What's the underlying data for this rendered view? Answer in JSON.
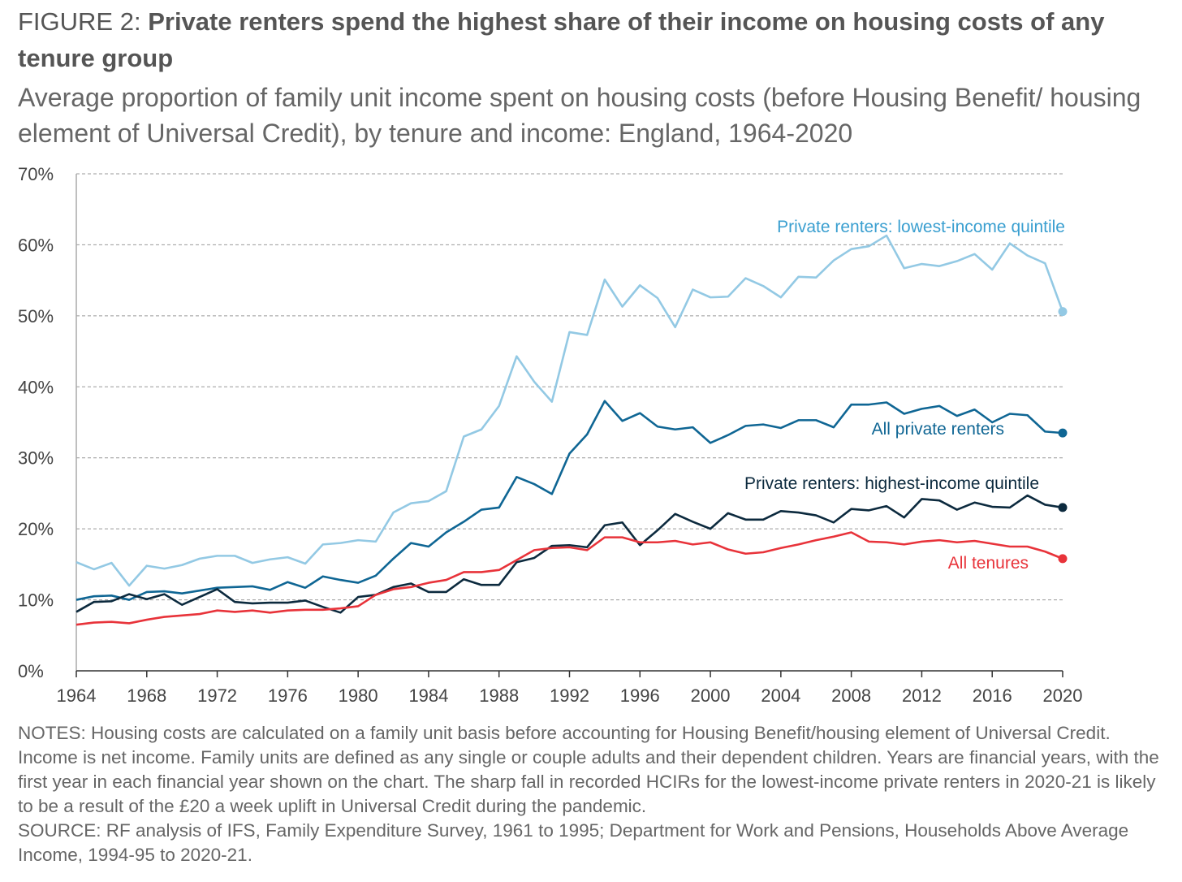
{
  "title": {
    "prefix": "FIGURE 2: ",
    "bold": "Private renters spend the highest share of their income on housing costs of any tenure group"
  },
  "subtitle": "Average proportion of family unit income spent on housing costs (before Housing Benefit/ housing element of Universal Credit), by tenure and income: England, 1964-2020",
  "notes": [
    "NOTES: Housing costs are calculated on a family unit basis before accounting for Housing Benefit/housing element of Universal Credit. Income is net income. Family units are defined as any single or couple adults and their dependent children. Years are financial years, with the first year in each financial year shown on the chart. The sharp fall in recorded HCIRs for the lowest-income private renters in 2020-21 is likely to be a result of the £20 a week uplift in Universal Credit during the pandemic.",
    "SOURCE: RF analysis of IFS, Family Expenditure Survey, 1961 to 1995; Department for Work and Pensions, Households Above Average Income, 1994-95 to 2020-21."
  ],
  "chart_data": {
    "type": "line",
    "xlim": [
      1964,
      2020
    ],
    "ylim": [
      0,
      70
    ],
    "grid": true,
    "x_ticks": [
      "1964",
      "1968",
      "1972",
      "1976",
      "1980",
      "1984",
      "1988",
      "1992",
      "1996",
      "2000",
      "2004",
      "2008",
      "2012",
      "2016",
      "2020"
    ],
    "y_ticks": [
      "0%",
      "10%",
      "20%",
      "30%",
      "40%",
      "50%",
      "60%",
      "70%"
    ],
    "legend": "inline labels",
    "series": [
      {
        "name": "Private renters: lowest-income quintile",
        "color": "#93c9e4",
        "label_color": "#3a9fd0",
        "values": [
          15.3,
          14.3,
          15.2,
          12.0,
          14.8,
          14.4,
          14.9,
          15.8,
          16.2,
          16.2,
          15.2,
          15.7,
          16.0,
          15.1,
          17.8,
          18.0,
          18.4,
          18.2,
          22.3,
          23.6,
          23.9,
          25.3,
          33.0,
          34.0,
          37.3,
          44.3,
          40.7,
          37.9,
          47.7,
          47.3,
          55.1,
          51.3,
          54.3,
          52.5,
          48.4,
          53.7,
          52.6,
          52.7,
          55.3,
          54.2,
          52.6,
          55.5,
          55.4,
          57.8,
          59.4,
          59.8,
          61.3,
          56.7,
          57.3,
          57.0,
          57.7,
          58.7,
          56.5,
          60.2,
          58.5,
          57.4,
          50.6
        ]
      },
      {
        "name": "All private renters",
        "color": "#0f6694",
        "label_color": "#0f6694",
        "values": [
          10.0,
          10.5,
          10.6,
          10.0,
          11.1,
          11.2,
          10.9,
          11.3,
          11.7,
          11.8,
          11.9,
          11.4,
          12.5,
          11.7,
          13.3,
          12.8,
          12.4,
          13.4,
          15.8,
          18.0,
          17.5,
          19.5,
          21.0,
          22.7,
          23.0,
          27.3,
          26.3,
          24.9,
          30.6,
          33.3,
          38.0,
          35.2,
          36.3,
          34.4,
          34.0,
          34.3,
          32.1,
          33.2,
          34.5,
          34.7,
          34.2,
          35.3,
          35.3,
          34.3,
          37.5,
          37.5,
          37.8,
          36.2,
          36.9,
          37.3,
          35.9,
          36.8,
          35.0,
          36.2,
          36.0,
          33.7,
          33.5
        ]
      },
      {
        "name": "Private renters: highest-income quintile",
        "color": "#0c2a3e",
        "label_color": "#0c2a3e",
        "values": [
          8.3,
          9.7,
          9.8,
          10.8,
          10.1,
          10.8,
          9.3,
          10.4,
          11.5,
          9.7,
          9.5,
          9.6,
          9.6,
          9.9,
          9.0,
          8.2,
          10.4,
          10.7,
          11.8,
          12.3,
          11.1,
          11.1,
          12.9,
          12.1,
          12.1,
          15.3,
          15.9,
          17.6,
          17.7,
          17.4,
          20.5,
          20.9,
          17.7,
          19.8,
          22.1,
          21.0,
          20.0,
          22.2,
          21.3,
          21.3,
          22.5,
          22.3,
          21.9,
          20.9,
          22.8,
          22.6,
          23.2,
          21.6,
          24.2,
          24.0,
          22.7,
          23.7,
          23.1,
          23.0,
          24.7,
          23.4,
          23.0
        ]
      },
      {
        "name": "All tenures",
        "color": "#e8333a",
        "label_color": "#e8333a",
        "values": [
          6.5,
          6.8,
          6.9,
          6.7,
          7.2,
          7.6,
          7.8,
          8.0,
          8.5,
          8.3,
          8.5,
          8.2,
          8.5,
          8.6,
          8.6,
          8.8,
          9.1,
          10.7,
          11.5,
          11.8,
          12.4,
          12.8,
          13.9,
          13.9,
          14.2,
          15.6,
          17.0,
          17.3,
          17.4,
          17.0,
          18.8,
          18.8,
          18.1,
          18.1,
          18.3,
          17.8,
          18.1,
          17.1,
          16.5,
          16.7,
          17.3,
          17.8,
          18.4,
          18.9,
          19.5,
          18.2,
          18.1,
          17.8,
          18.2,
          18.4,
          18.1,
          18.3,
          17.9,
          17.5,
          17.5,
          16.8,
          15.8
        ]
      }
    ]
  }
}
